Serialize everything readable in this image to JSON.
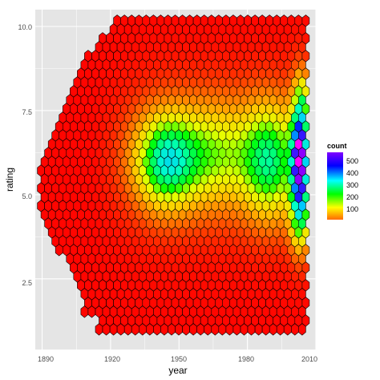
{
  "chart_data": {
    "type": "heatmap",
    "subtype": "hexbin",
    "title": "",
    "xlabel": "year",
    "ylabel": "rating",
    "xlim": [
      1887,
      2010
    ],
    "ylim": [
      0.4,
      10.5
    ],
    "x_ticks": [
      1890,
      1920,
      1950,
      1980,
      2010
    ],
    "x_tick_labels": [
      "1890",
      "1920",
      "1950",
      "1980",
      "2010"
    ],
    "y_ticks": [
      2.5,
      5.0,
      7.5,
      10.0
    ],
    "y_tick_labels": [
      "2.5",
      "5.0",
      "7.5",
      "10.0"
    ],
    "grid": true,
    "panel_background": "#e5e5e5",
    "grid_color": "#ffffff",
    "hex_outline": "#000000",
    "legend": {
      "title": "count",
      "placement": "right",
      "breaks": [
        500,
        400,
        300,
        200,
        100
      ],
      "labels": [
        "500",
        "400",
        "300",
        "200",
        "100"
      ],
      "range": [
        1,
        560
      ],
      "colors": [
        "#ff6a00",
        "#ffff00",
        "#00ff00",
        "#00ffff",
        "#0000ff",
        "#8000ff"
      ]
    },
    "hex_size_data": {
      "dx": 3.18,
      "dy": 0.262
    },
    "hexbins": "generated-by-script"
  }
}
